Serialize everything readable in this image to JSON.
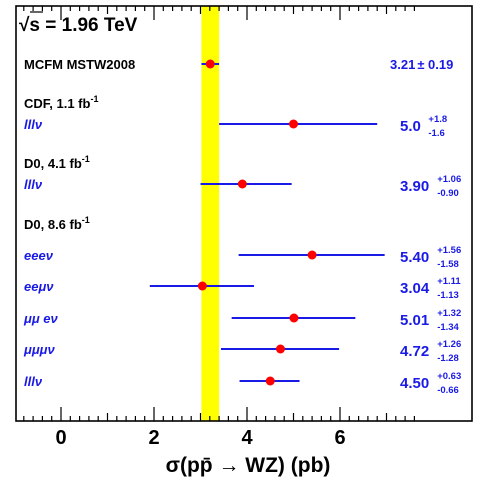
{
  "chart_data": {
    "type": "scatter",
    "title": "√s = 1.96 TeV",
    "xlabel": "σ(pp̄ → WZ) (pb)",
    "xlim": [
      -1.0,
      7.7
    ],
    "x_ticks": [
      "0",
      "2",
      "4",
      "6"
    ],
    "band": {
      "value": 3.21,
      "error": 0.19,
      "color": "#ffff00"
    },
    "colors": {
      "marker": "#ff0000",
      "errorbar": "#1a1ae6",
      "values": "#1a1ae6"
    },
    "rows": [
      {
        "id": "mcfm",
        "label": "MCFM MSTW2008",
        "value": 3.21,
        "err_up": 0.19,
        "err_dn": 0.19,
        "value_text": "3.21",
        "sym_text": "± 0.19"
      },
      {
        "id": "cdf-head",
        "label": "CDF, 1.1 fb",
        "label_sup": "-1",
        "heading": true
      },
      {
        "id": "cdf-lllv",
        "label": "lllν",
        "value": 5.0,
        "err_up": 1.8,
        "err_dn": 1.6,
        "value_text": "5.0",
        "up_text": "+1.8",
        "dn_text": "-1.6"
      },
      {
        "id": "d041-head",
        "label": "D0, 4.1 fb",
        "label_sup": "-1",
        "heading": true
      },
      {
        "id": "d041-lllv",
        "label": "lllν",
        "value": 3.9,
        "err_up": 1.06,
        "err_dn": 0.9,
        "value_text": "3.90",
        "up_text": "+1.06",
        "dn_text": "-0.90"
      },
      {
        "id": "d086-head",
        "label": "D0, 8.6 fb",
        "label_sup": "-1",
        "heading": true
      },
      {
        "id": "eeev",
        "label": "eeeν",
        "value": 5.4,
        "err_up": 1.56,
        "err_dn": 1.58,
        "value_text": "5.40",
        "up_text": "+1.56",
        "dn_text": "-1.58"
      },
      {
        "id": "eemuv",
        "label": "eeμν",
        "value": 3.04,
        "err_up": 1.11,
        "err_dn": 1.13,
        "value_text": "3.04",
        "up_text": "+1.11",
        "dn_text": "-1.13"
      },
      {
        "id": "mumuev",
        "label": "μμ eν",
        "value": 5.01,
        "err_up": 1.32,
        "err_dn": 1.34,
        "value_text": "5.01",
        "up_text": "+1.32",
        "dn_text": "-1.34"
      },
      {
        "id": "mumumuv",
        "label": "μμμν",
        "value": 4.72,
        "err_up": 1.26,
        "err_dn": 1.28,
        "value_text": "4.72",
        "up_text": "+1.26",
        "dn_text": "-1.28"
      },
      {
        "id": "d086-lllv",
        "label": "lllν",
        "value": 4.5,
        "err_up": 0.63,
        "err_dn": 0.66,
        "value_text": "4.50",
        "up_text": "+0.63",
        "dn_text": "-0.66"
      }
    ]
  }
}
